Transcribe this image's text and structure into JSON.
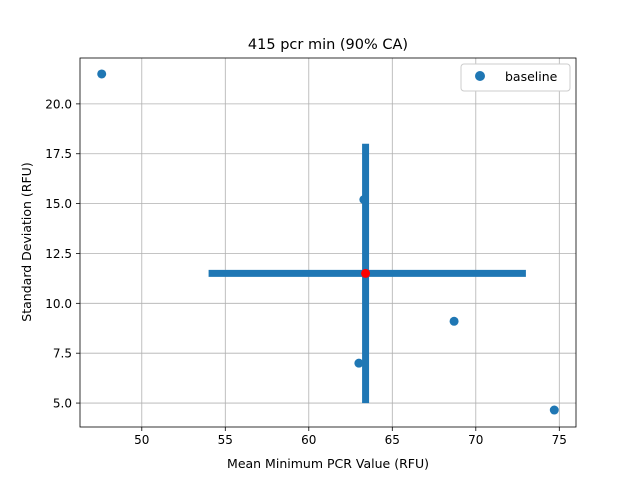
{
  "chart_data": {
    "type": "scatter",
    "title": "415 pcr min (90% CA)",
    "xlabel": "Mean Minimum PCR Value (RFU)",
    "ylabel": "Standard Deviation (RFU)",
    "xlim": [
      46.3,
      76.0
    ],
    "ylim": [
      3.8,
      22.3
    ],
    "x_ticks": [
      50,
      55,
      60,
      65,
      70,
      75
    ],
    "x_tick_labels": [
      "50",
      "55",
      "60",
      "65",
      "70",
      "75"
    ],
    "y_ticks": [
      5.0,
      7.5,
      10.0,
      12.5,
      15.0,
      17.5,
      20.0
    ],
    "y_tick_labels": [
      "5.0",
      "7.5",
      "10.0",
      "12.5",
      "15.0",
      "17.5",
      "20.0"
    ],
    "grid": true,
    "legend_position": "top-right",
    "series": [
      {
        "name": "baseline",
        "color": "#1f77b4",
        "points": [
          {
            "x": 47.6,
            "y": 21.5
          },
          {
            "x": 63.3,
            "y": 15.2
          },
          {
            "x": 63.0,
            "y": 7.0
          },
          {
            "x": 68.7,
            "y": 9.1
          },
          {
            "x": 74.7,
            "y": 4.65
          }
        ]
      }
    ],
    "center_point": {
      "x": 63.4,
      "y": 11.5,
      "color": "#ff0000"
    },
    "crosshair": {
      "color": "#1f77b4",
      "horizontal": {
        "y": 11.5,
        "x_from": 54.0,
        "x_to": 73.0
      },
      "vertical": {
        "x": 63.4,
        "y_from": 5.0,
        "y_to": 18.0
      }
    }
  }
}
